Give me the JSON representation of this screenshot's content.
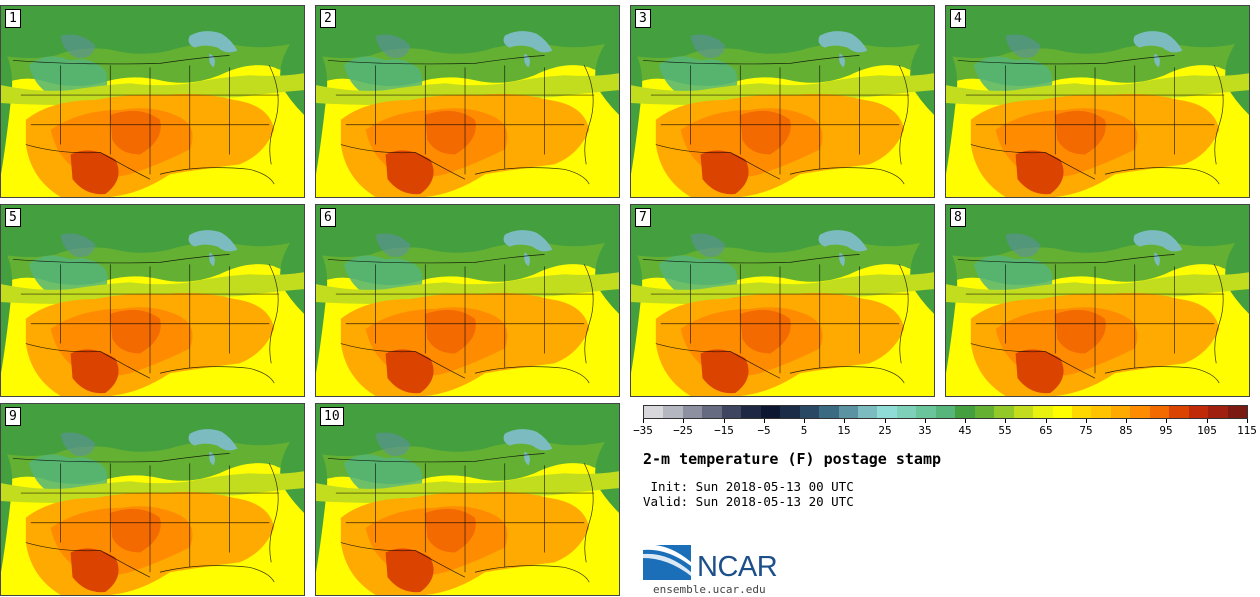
{
  "figure": {
    "title": "2-m temperature (F) postage stamp",
    "init": " Init: Sun 2018-05-13 00 UTC",
    "valid": "Valid: Sun 2018-05-13 20 UTC",
    "org_name": "NCAR",
    "website": "ensemble.ucar.edu"
  },
  "members": [
    "1",
    "2",
    "3",
    "4",
    "5",
    "6",
    "7",
    "8",
    "9",
    "10"
  ],
  "colorbar": {
    "colors": [
      "#d8d8dc",
      "#b5b7c0",
      "#8d90a0",
      "#666b82",
      "#3e4560",
      "#1e2844",
      "#0c1630",
      "#1b2c48",
      "#284863",
      "#3a6b82",
      "#5b93a2",
      "#7cbcc0",
      "#8fdcd6",
      "#7ed0b8",
      "#6bc59a",
      "#55b57a",
      "#449f3f",
      "#64b033",
      "#93c829",
      "#c2dd1e",
      "#e9f10e",
      "#fffd00",
      "#ffd800",
      "#ffc300",
      "#ffaa00",
      "#ff8c00",
      "#f36a00",
      "#db4400",
      "#c02a08",
      "#a02010",
      "#7a1a10"
    ],
    "tick_labels": [
      "−35",
      "−25",
      "−15",
      "−5",
      "5",
      "15",
      "25",
      "35",
      "45",
      "55",
      "65",
      "75",
      "85",
      "95",
      "105",
      "115"
    ]
  }
}
